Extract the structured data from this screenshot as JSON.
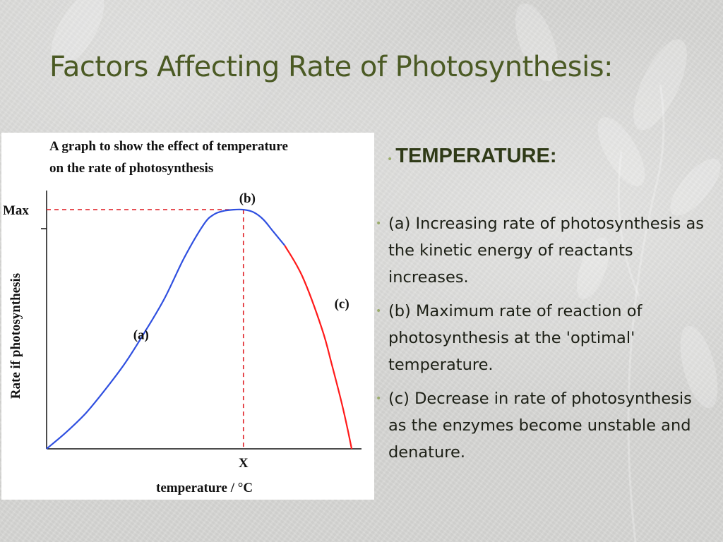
{
  "slide": {
    "title": "Factors Affecting Rate of Photosynthesis:"
  },
  "colors": {
    "title": "#4b5a24",
    "bullet": "#9aab6a",
    "rising_curve": "#2f4fe0",
    "falling_curve": "#ff1a1a",
    "guide_lines": "#e0242a"
  },
  "chart_data": {
    "type": "line",
    "title": "A graph to show the effect of temperature on the rate of photosynthesis",
    "title_lines": [
      "A graph to show the effect of temperature",
      "on the rate of photosynthesis"
    ],
    "xlabel": "temperature / °C",
    "ylabel": "Rate if photosynthesis",
    "x_ticks": [
      "X"
    ],
    "y_ticks": [
      "Max"
    ],
    "xlim": [
      0,
      1.6
    ],
    "ylim": [
      0,
      1.08
    ],
    "grid": false,
    "optimum": {
      "x": 1.0,
      "y": 1.0
    },
    "annotations": [
      {
        "label": "(a)",
        "x": 0.48,
        "y": 0.48
      },
      {
        "label": "(b)",
        "x": 1.02,
        "y": 1.05
      },
      {
        "label": "(c)",
        "x": 1.5,
        "y": 0.61
      }
    ],
    "series": [
      {
        "segment": "rising",
        "color": "#2f4fe0",
        "x": [
          0,
          0.1,
          0.2,
          0.3,
          0.4,
          0.5,
          0.6,
          0.7,
          0.8,
          0.85,
          0.9,
          0.95,
          1.0,
          1.05,
          1.1,
          1.15,
          1.21
        ],
        "y": [
          0,
          0.07,
          0.15,
          0.25,
          0.36,
          0.49,
          0.63,
          0.8,
          0.94,
          0.98,
          0.995,
          1.0,
          1.0,
          0.99,
          0.96,
          0.91,
          0.85
        ]
      },
      {
        "segment": "falling",
        "color": "#ff1a1a",
        "x": [
          1.21,
          1.3,
          1.4,
          1.45,
          1.5,
          1.53,
          1.55
        ],
        "y": [
          0.85,
          0.72,
          0.5,
          0.35,
          0.19,
          0.08,
          0
        ]
      }
    ]
  },
  "panel": {
    "heading": "TEMPERATURE:",
    "points": [
      "(a) Increasing rate of photosynthesis as the kinetic energy of reactants increases.",
      "(b) Maximum rate of reaction of photosynthesis at the 'optimal' temperature.",
      "(c) Decrease in rate of photosynthesis as the enzymes become unstable and denature."
    ]
  }
}
